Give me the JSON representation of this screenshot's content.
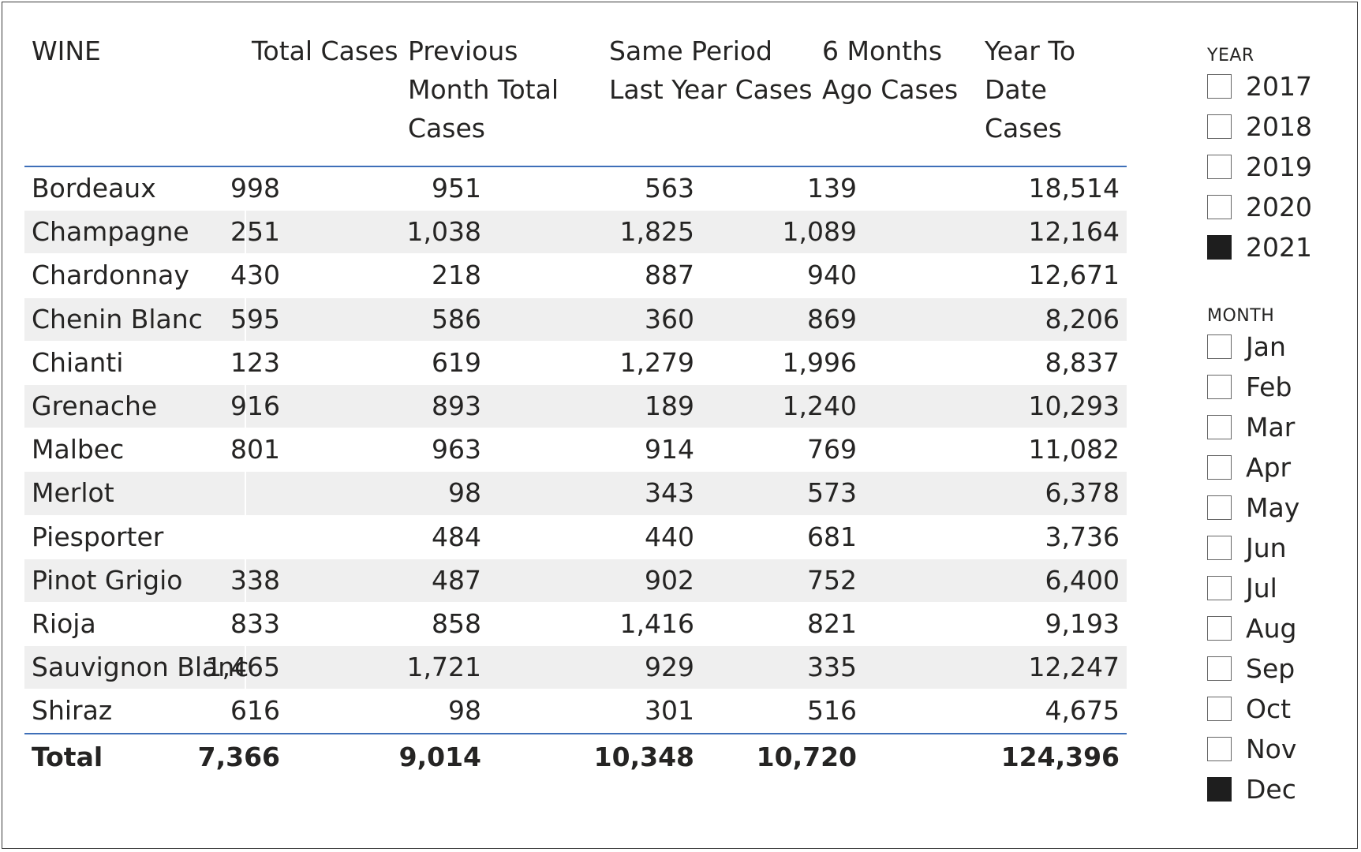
{
  "table": {
    "headers": {
      "wine": "WINE",
      "total_cases": "Total Cases",
      "prev_month": [
        "Previous",
        "Month Total",
        "Cases"
      ],
      "same_period": [
        "Same Period",
        "Last Year Cases"
      ],
      "six_months": [
        "6 Months",
        "Ago Cases"
      ],
      "ytd": [
        "Year To",
        "Date",
        "Cases"
      ]
    },
    "rows": [
      {
        "wine": "Bordeaux",
        "total": "998",
        "prev": "951",
        "same": "563",
        "six": "139",
        "ytd": "18,514"
      },
      {
        "wine": "Champagne",
        "total": "251",
        "prev": "1,038",
        "same": "1,825",
        "six": "1,089",
        "ytd": "12,164"
      },
      {
        "wine": "Chardonnay",
        "total": "430",
        "prev": "218",
        "same": "887",
        "six": "940",
        "ytd": "12,671"
      },
      {
        "wine": "Chenin Blanc",
        "total": "595",
        "prev": "586",
        "same": "360",
        "six": "869",
        "ytd": "8,206"
      },
      {
        "wine": "Chianti",
        "total": "123",
        "prev": "619",
        "same": "1,279",
        "six": "1,996",
        "ytd": "8,837"
      },
      {
        "wine": "Grenache",
        "total": "916",
        "prev": "893",
        "same": "189",
        "six": "1,240",
        "ytd": "10,293"
      },
      {
        "wine": "Malbec",
        "total": "801",
        "prev": "963",
        "same": "914",
        "six": "769",
        "ytd": "11,082"
      },
      {
        "wine": "Merlot",
        "total": "",
        "prev": "98",
        "same": "343",
        "six": "573",
        "ytd": "6,378"
      },
      {
        "wine": "Piesporter",
        "total": "",
        "prev": "484",
        "same": "440",
        "six": "681",
        "ytd": "3,736"
      },
      {
        "wine": "Pinot Grigio",
        "total": "338",
        "prev": "487",
        "same": "902",
        "six": "752",
        "ytd": "6,400"
      },
      {
        "wine": "Rioja",
        "total": "833",
        "prev": "858",
        "same": "1,416",
        "six": "821",
        "ytd": "9,193"
      },
      {
        "wine": "Sauvignon Blanc",
        "total": "1,465",
        "prev": "1,721",
        "same": "929",
        "six": "335",
        "ytd": "12,247"
      },
      {
        "wine": "Shiraz",
        "total": "616",
        "prev": "98",
        "same": "301",
        "six": "516",
        "ytd": "4,675"
      }
    ],
    "totals": {
      "label": "Total",
      "total": "7,366",
      "prev": "9,014",
      "same": "10,348",
      "six": "10,720",
      "ytd": "124,396"
    }
  },
  "year_slicer": {
    "title": "YEAR",
    "options": [
      {
        "label": "2017",
        "checked": false
      },
      {
        "label": "2018",
        "checked": false
      },
      {
        "label": "2019",
        "checked": false
      },
      {
        "label": "2020",
        "checked": false
      },
      {
        "label": "2021",
        "checked": true
      }
    ]
  },
  "month_slicer": {
    "title": "MONTH",
    "options": [
      {
        "label": "Jan",
        "checked": false
      },
      {
        "label": "Feb",
        "checked": false
      },
      {
        "label": "Mar",
        "checked": false
      },
      {
        "label": "Apr",
        "checked": false
      },
      {
        "label": "May",
        "checked": false
      },
      {
        "label": "Jun",
        "checked": false
      },
      {
        "label": "Jul",
        "checked": false
      },
      {
        "label": "Aug",
        "checked": false
      },
      {
        "label": "Sep",
        "checked": false
      },
      {
        "label": "Oct",
        "checked": false
      },
      {
        "label": "Nov",
        "checked": false
      },
      {
        "label": "Dec",
        "checked": true
      }
    ]
  },
  "colors": {
    "header_rule": "#3e6fb8",
    "alt_row": "#efefef",
    "checked_box": "#1e1e1e"
  }
}
